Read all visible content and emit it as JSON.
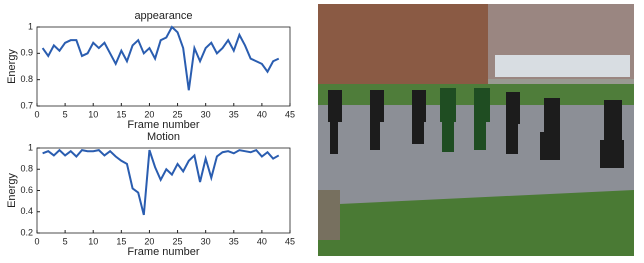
{
  "chart_data": [
    {
      "type": "line",
      "title": "appearance",
      "x_label": "Frame number",
      "y_label": "Energy",
      "x": [
        1,
        2,
        3,
        4,
        5,
        6,
        7,
        8,
        9,
        10,
        11,
        12,
        13,
        14,
        15,
        16,
        17,
        18,
        19,
        20,
        21,
        22,
        23,
        24,
        25,
        26,
        27,
        28,
        29,
        30,
        31,
        32,
        33,
        34,
        35,
        36,
        37,
        38,
        39,
        40,
        41,
        42,
        43
      ],
      "series": [
        {
          "color": "#2a5db0",
          "values": [
            0.92,
            0.89,
            0.93,
            0.91,
            0.94,
            0.95,
            0.95,
            0.89,
            0.9,
            0.94,
            0.92,
            0.94,
            0.9,
            0.86,
            0.91,
            0.87,
            0.93,
            0.95,
            0.9,
            0.92,
            0.88,
            0.95,
            0.96,
            1.0,
            0.98,
            0.92,
            0.76,
            0.92,
            0.87,
            0.92,
            0.94,
            0.9,
            0.92,
            0.95,
            0.91,
            0.97,
            0.93,
            0.88,
            0.87,
            0.86,
            0.83,
            0.87,
            0.88
          ]
        }
      ],
      "xlim": [
        0,
        45
      ],
      "xticks": [
        0,
        5,
        10,
        15,
        20,
        25,
        30,
        35,
        40,
        45
      ],
      "ylim": [
        0.7,
        1
      ],
      "yticks": [
        0.7,
        0.8,
        0.9,
        1
      ]
    },
    {
      "type": "line",
      "title": "Motion",
      "x_label": "Frame number",
      "y_label": "Energy",
      "x": [
        1,
        2,
        3,
        4,
        5,
        6,
        7,
        8,
        9,
        10,
        11,
        12,
        13,
        14,
        15,
        16,
        17,
        18,
        19,
        20,
        21,
        22,
        23,
        24,
        25,
        26,
        27,
        28,
        29,
        30,
        31,
        32,
        33,
        34,
        35,
        36,
        37,
        38,
        39,
        40,
        41,
        42,
        43
      ],
      "series": [
        {
          "color": "#2a5db0",
          "values": [
            0.95,
            0.97,
            0.93,
            0.98,
            0.93,
            0.97,
            0.92,
            0.98,
            0.97,
            0.97,
            0.98,
            0.93,
            0.97,
            0.92,
            0.88,
            0.85,
            0.62,
            0.58,
            0.37,
            0.98,
            0.82,
            0.7,
            0.8,
            0.75,
            0.85,
            0.78,
            0.88,
            0.93,
            0.68,
            0.9,
            0.72,
            0.92,
            0.96,
            0.97,
            0.95,
            0.98,
            0.97,
            0.96,
            0.98,
            0.92,
            0.96,
            0.9,
            0.93
          ]
        }
      ],
      "xlim": [
        0,
        45
      ],
      "xticks": [
        0,
        5,
        10,
        15,
        20,
        25,
        30,
        35,
        40,
        45
      ],
      "ylim": [
        0.2,
        1
      ],
      "yticks": [
        0.2,
        0.4,
        0.6,
        0.8,
        1
      ]
    }
  ]
}
